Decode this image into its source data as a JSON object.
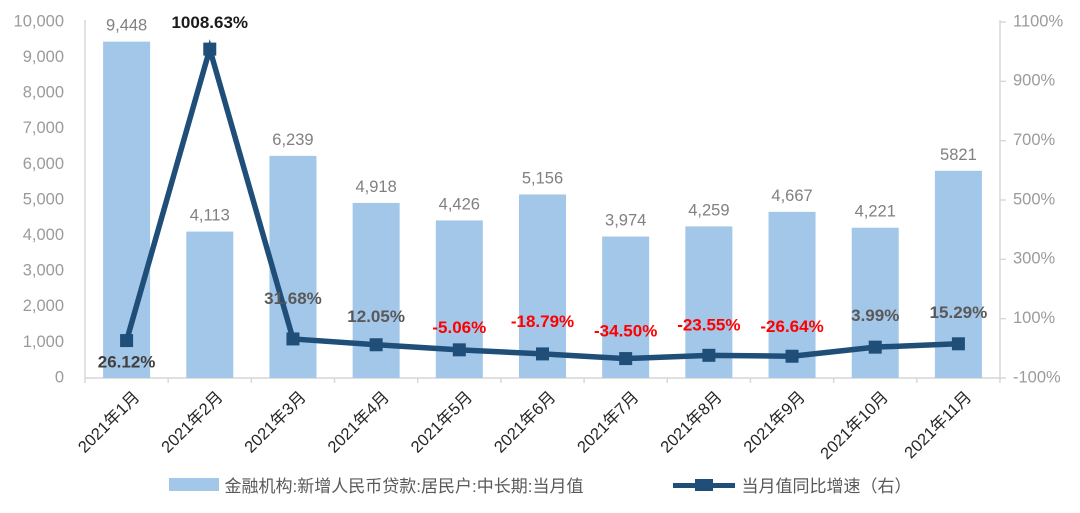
{
  "chart_data": {
    "type": "combo",
    "title": "",
    "grid": false,
    "legend_position": "bottom",
    "categories": [
      "2021年1月",
      "2021年2月",
      "2021年3月",
      "2021年4月",
      "2021年5月",
      "2021年6月",
      "2021年7月",
      "2021年8月",
      "2021年9月",
      "2021年10月",
      "2021年11月"
    ],
    "series": [
      {
        "name": "金融机构:新增人民币贷款:居民户:中长期:当月值",
        "type": "bar",
        "axis": "left",
        "values": [
          9448,
          4113,
          6239,
          4918,
          4426,
          5156,
          3974,
          4259,
          4667,
          4221,
          5821
        ],
        "labels": [
          "9,448",
          "4,113",
          "6,239",
          "4,918",
          "4,426",
          "5,156",
          "3,974",
          "4,259",
          "4,667",
          "4,221",
          "5821"
        ]
      },
      {
        "name": "当月值同比增速（右）",
        "type": "line",
        "axis": "right",
        "values": [
          26.12,
          1008.63,
          31.68,
          12.05,
          -5.06,
          -18.79,
          -34.5,
          -23.55,
          -26.64,
          3.99,
          15.29
        ],
        "labels": [
          "26.12%",
          "1008.63%",
          "31.68%",
          "12.05%",
          "-5.06%",
          "-18.79%",
          "-34.50%",
          "-23.55%",
          "-26.64%",
          "3.99%",
          "15.29%"
        ],
        "label_colors": [
          "#404040",
          "#1a1a1a",
          "#595959",
          "#595959",
          "#ff0000",
          "#ff0000",
          "#ff0000",
          "#ff0000",
          "#ff0000",
          "#595959",
          "#595959"
        ],
        "label_dy": [
          27,
          -21,
          -35,
          -23,
          -17,
          -27,
          -22,
          -25,
          -24,
          -26,
          -26
        ]
      }
    ],
    "left_axis": {
      "min": 0,
      "max": 10000,
      "step": 1000,
      "tick_labels": [
        "0",
        "1,000",
        "2,000",
        "3,000",
        "4,000",
        "5,000",
        "6,000",
        "7,000",
        "8,000",
        "9,000",
        "10,000"
      ]
    },
    "right_axis": {
      "min": -100,
      "max": 1100,
      "step": 200,
      "tick_labels": [
        "-100%",
        "100%",
        "300%",
        "500%",
        "700%",
        "900%",
        "1100%"
      ]
    },
    "colors": {
      "bar": "#A3C7E8",
      "line": "#1F4E79",
      "axis_line": "#D6D6D6",
      "tick_text": "#9B9B9B",
      "bar_label": "#808080",
      "x_label": "#262626",
      "legend_text": "#595959"
    },
    "legend": [
      {
        "label": "金融机构:新增人民币贷款:居民户:中长期:当月值",
        "type": "bar"
      },
      {
        "label": "当月值同比增速（右）",
        "type": "line"
      }
    ]
  }
}
